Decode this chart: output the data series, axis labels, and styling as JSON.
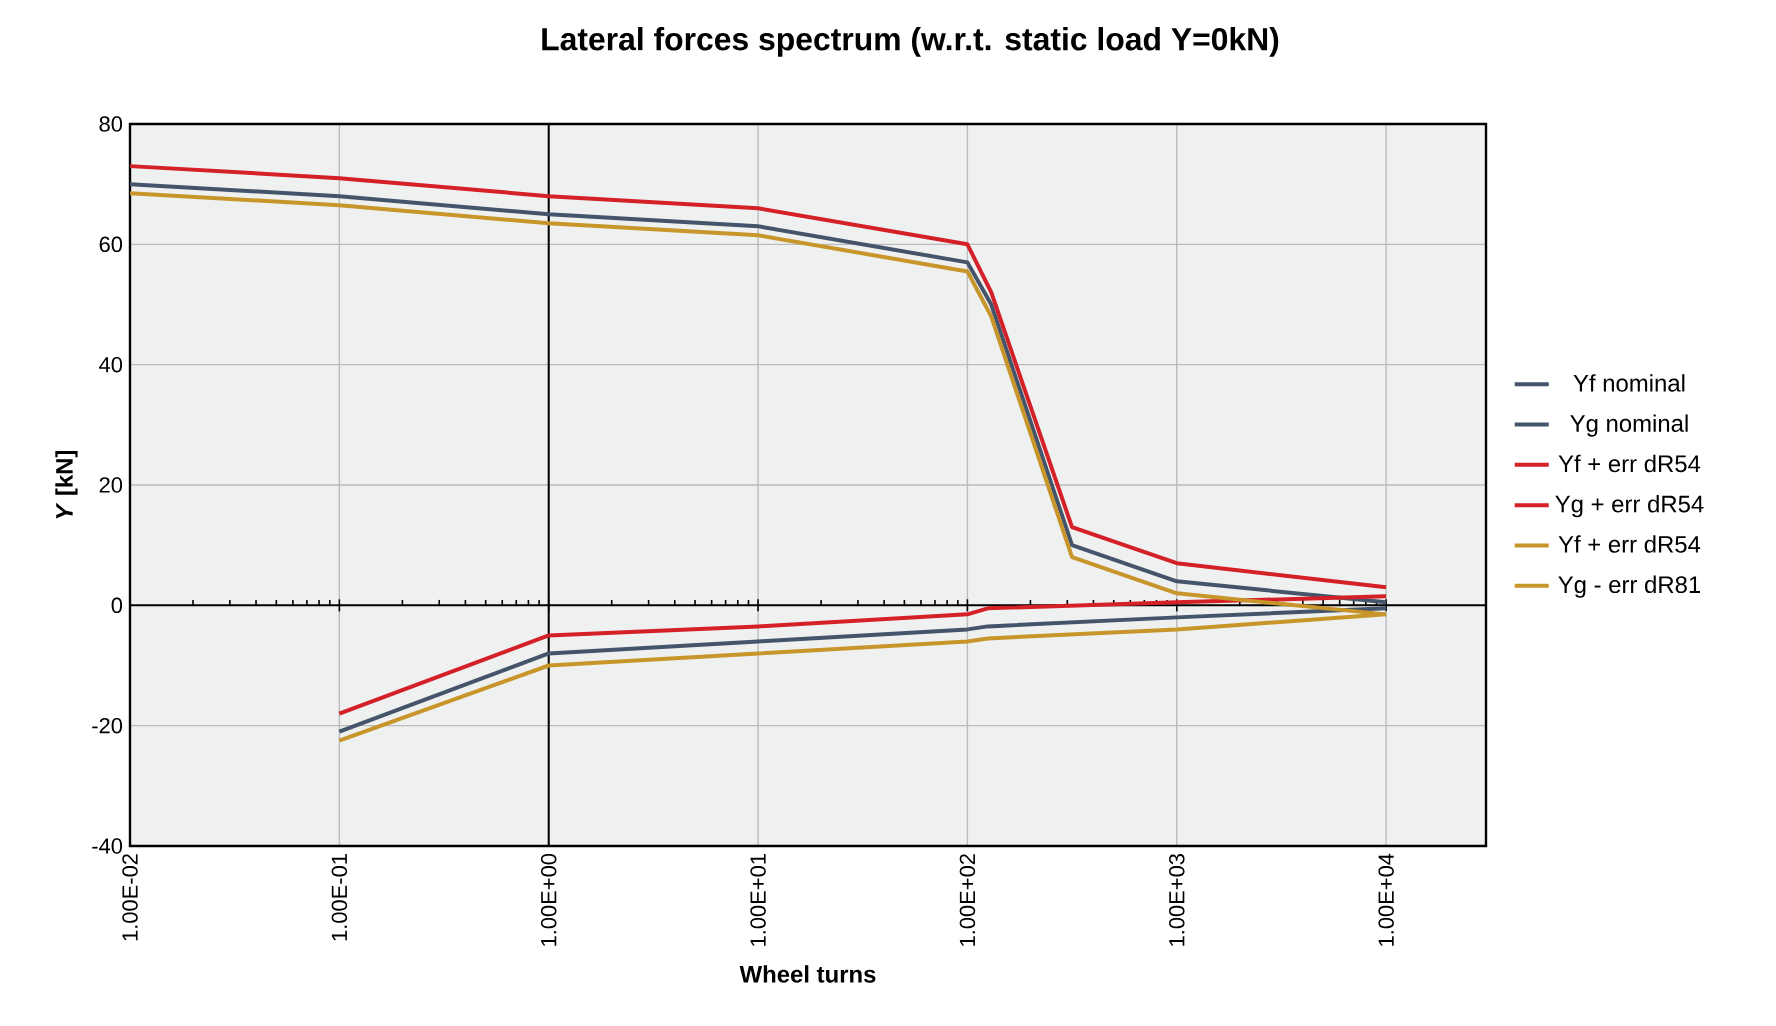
{
  "chart_data": {
    "type": "line",
    "title": "Lateral forces spectrum (w.r.t. static load Y=0kN)",
    "xlabel": "Wheel turns",
    "ylabel": "*Y* [kN]",
    "log": "x",
    "grid": true,
    "legend": "right",
    "xlim": [
      0.01,
      30000
    ],
    "xticks": [
      {
        "value": 0.01,
        "label": "1.00E-02"
      },
      {
        "value": 0.1,
        "label": "1.00E-01"
      },
      {
        "value": 1,
        "label": "1.00E+00"
      },
      {
        "value": 10,
        "label": "1.00E+01"
      },
      {
        "value": 100,
        "label": "1.00E+02"
      },
      {
        "value": 1000,
        "label": "1.00E+03"
      },
      {
        "value": 10000,
        "label": "1.00E+04"
      }
    ],
    "ylim": [
      -40,
      80
    ],
    "yticks": [
      -40,
      -20,
      0,
      20,
      40,
      60,
      80
    ],
    "series": [
      {
        "name": "Yf nominal",
        "color": "#44546a",
        "x": [
          0.01,
          0.1,
          1,
          10,
          100,
          130,
          316,
          1000,
          10000
        ],
        "values": [
          70,
          68,
          65,
          63,
          57,
          50,
          10,
          4,
          0.5
        ]
      },
      {
        "name": "Yg nominal",
        "color": "#44546a",
        "x": [
          0.1,
          1,
          10,
          100,
          125,
          1000,
          10000
        ],
        "values": [
          -21,
          -8,
          -6,
          -4,
          -3.5,
          -2,
          -0.5
        ]
      },
      {
        "name": "Yf + err dR54",
        "color": "#d42027",
        "x": [
          0.01,
          0.1,
          1,
          10,
          100,
          130,
          316,
          1000,
          10000
        ],
        "values": [
          73,
          71,
          68,
          66,
          60,
          52,
          13,
          7,
          3
        ]
      },
      {
        "name": "Yg + err dR54",
        "color": "#d42027",
        "x": [
          0.1,
          1,
          10,
          100,
          125,
          1000,
          10000
        ],
        "values": [
          -18,
          -5,
          -3.5,
          -1.5,
          -0.5,
          0.5,
          1.5
        ]
      },
      {
        "name": "Yf + err dR54",
        "color": "#c8952a",
        "x": [
          0.01,
          0.1,
          1,
          10,
          100,
          130,
          316,
          1000,
          10000
        ],
        "values": [
          68.5,
          66.5,
          63.5,
          61.5,
          55.5,
          48,
          8,
          2,
          -1.5
        ]
      },
      {
        "name": "Yg - err dR81",
        "color": "#c8952a",
        "x": [
          0.1,
          1,
          10,
          100,
          125,
          1000,
          10000
        ],
        "values": [
          -22.5,
          -10,
          -8,
          -6,
          -5.5,
          -4,
          -1.5
        ]
      }
    ]
  }
}
